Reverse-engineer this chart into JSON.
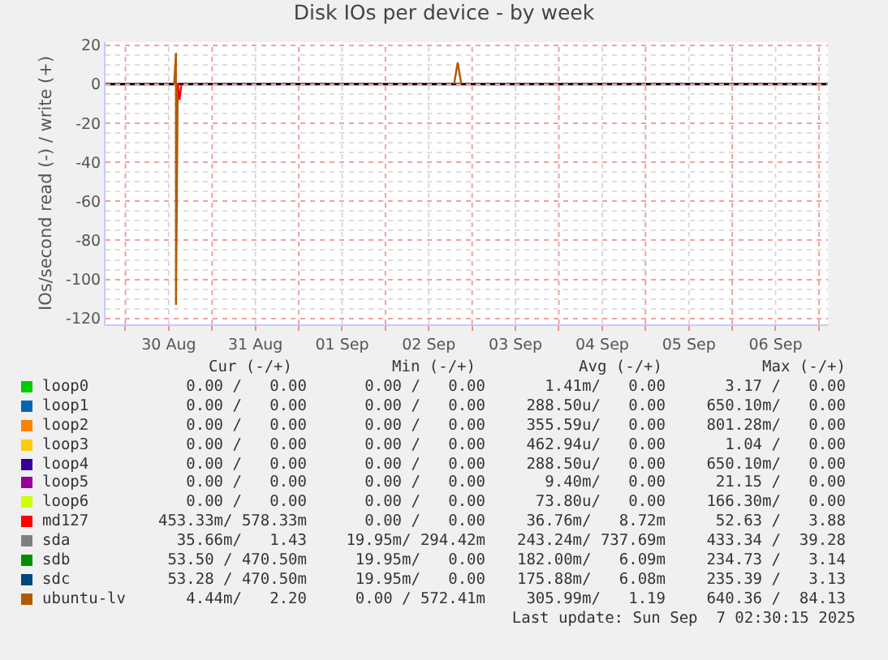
{
  "chart_data": {
    "type": "line",
    "title": "Disk IOs per device - by week",
    "ylabel": "IOs/second read (-) / write (+)",
    "x": [
      "2025-08-30T13:30",
      "2025-08-30T14:00",
      "2025-08-30T14:00",
      "2025-08-30T14:30",
      "2025-08-31T12:00",
      "2025-09-01T04:00",
      "2025-09-01T05:00",
      "2025-09-01T06:00",
      "2025-09-02T12:00",
      "2025-09-02T19:00",
      "2025-09-02T20:00",
      "2025-09-02T21:00"
    ],
    "xlim": [
      "2025-08-29T18:30",
      "2025-09-07T02:30"
    ],
    "xticks": [
      {
        "value": "2025-08-30T00:00",
        "label": null
      },
      {
        "value": "2025-08-30T12:00",
        "label": "30 Aug"
      },
      {
        "value": "2025-08-31T00:00",
        "label": null
      },
      {
        "value": "2025-08-31T12:00",
        "label": "31 Aug"
      },
      {
        "value": "2025-09-01T00:00",
        "label": null
      },
      {
        "value": "2025-09-01T12:00",
        "label": "01 Sep"
      },
      {
        "value": "2025-09-02T00:00",
        "label": null
      },
      {
        "value": "2025-09-02T12:00",
        "label": "02 Sep"
      },
      {
        "value": "2025-09-03T00:00",
        "label": null
      },
      {
        "value": "2025-09-03T12:00",
        "label": "03 Sep"
      },
      {
        "value": "2025-09-04T00:00",
        "label": null
      },
      {
        "value": "2025-09-04T12:00",
        "label": "04 Sep"
      },
      {
        "value": "2025-09-05T00:00",
        "label": null
      },
      {
        "value": "2025-09-05T12:00",
        "label": "05 Sep"
      },
      {
        "value": "2025-09-06T00:00",
        "label": null
      },
      {
        "value": "2025-09-06T12:00",
        "label": "06 Sep"
      },
      {
        "value": "2025-09-07T00:00",
        "label": null
      }
    ],
    "ylim": [
      -123,
      21.5
    ],
    "yticks": [
      -120,
      -100,
      -80,
      -60,
      -40,
      -20,
      0,
      20
    ],
    "grid": true,
    "legend": "bottom",
    "marker": "none",
    "line_style": "solid",
    "ref_lines": [
      {
        "axis": "y",
        "value": 0,
        "color": "#000000"
      }
    ],
    "series": [
      {
        "name": "loop0",
        "color": "#00cc00",
        "values": [
          null,
          null,
          null,
          null,
          null,
          null,
          null,
          null,
          null,
          null,
          null,
          null
        ]
      },
      {
        "name": "loop1",
        "color": "#0066b3",
        "values": [
          null,
          null,
          null,
          null,
          null,
          null,
          null,
          null,
          null,
          null,
          null,
          null
        ]
      },
      {
        "name": "loop2",
        "color": "#ff8000",
        "values": [
          null,
          null,
          null,
          null,
          null,
          null,
          null,
          null,
          null,
          null,
          null,
          null
        ]
      },
      {
        "name": "loop3",
        "color": "#ffcc00",
        "values": [
          null,
          null,
          null,
          null,
          null,
          null,
          null,
          null,
          null,
          null,
          null,
          null
        ]
      },
      {
        "name": "loop4",
        "color": "#330099",
        "values": [
          null,
          null,
          null,
          null,
          null,
          null,
          null,
          null,
          null,
          null,
          null,
          null
        ]
      },
      {
        "name": "loop5",
        "color": "#990099",
        "values": [
          null,
          null,
          null,
          null,
          null,
          null,
          null,
          null,
          null,
          null,
          null,
          null
        ]
      },
      {
        "name": "loop6",
        "color": "#ccff00",
        "values": [
          null,
          null,
          null,
          null,
          null,
          null,
          null,
          null,
          null,
          null,
          null,
          null
        ]
      },
      {
        "name": "md127",
        "color": "#ff0000",
        "values": [
          null,
          null,
          null,
          null,
          null,
          null,
          null,
          null,
          null,
          null,
          null,
          null
        ]
      },
      {
        "name": "sda",
        "color": "#808080",
        "values": [
          null,
          null,
          null,
          null,
          null,
          null,
          null,
          null,
          null,
          null,
          null,
          null
        ]
      },
      {
        "name": "sdb",
        "color": "#008f00",
        "values": [
          null,
          null,
          null,
          null,
          null,
          null,
          null,
          null,
          null,
          null,
          null,
          null
        ]
      },
      {
        "name": "sdc",
        "color": "#00487d",
        "values": [
          null,
          null,
          null,
          null,
          null,
          null,
          null,
          null,
          null,
          null,
          null,
          null
        ]
      },
      {
        "name": "ubuntu-lv",
        "color": "#b35a00",
        "values": [
          0,
          16,
          -113,
          0,
          null,
          null,
          null,
          null,
          null,
          0,
          11,
          0
        ]
      },
      {
        "color": "#ff0000",
        "x": [
          "2025-08-30T14:30",
          "2025-08-30T15:00",
          "2025-08-30T15:30"
        ],
        "values": [
          0,
          -8,
          0
        ]
      }
    ],
    "annotations": [
      "Cur (-/+)",
      "Min (-/+)",
      "Avg (-/+)",
      "Max (-/+)",
      "0.00 /   0.00",
      "0.00 /   0.00",
      "1.41m/   0.00",
      "3.17 /   0.00",
      "0.00 /   0.00",
      "0.00 /   0.00",
      "288.50u/   0.00",
      "650.10m/   0.00",
      "0.00 /   0.00",
      "0.00 /   0.00",
      "355.59u/   0.00",
      "801.28m/   0.00",
      "0.00 /   0.00",
      "0.00 /   0.00",
      "462.94u/   0.00",
      "1.04 /   0.00",
      "0.00 /   0.00",
      "0.00 /   0.00",
      "288.50u/   0.00",
      "650.10m/   0.00",
      "0.00 /   0.00",
      "0.00 /   0.00",
      "9.40m/   0.00",
      "21.15 /   0.00",
      "0.00 /   0.00",
      "0.00 /   0.00",
      "73.80u/   0.00",
      "166.30m/   0.00",
      "453.33m/ 578.33m",
      "0.00 /   0.00",
      "36.76m/   8.72m",
      "52.63 /   3.88",
      "35.66m/   1.43",
      "19.95m/ 294.42m",
      "243.24m/ 737.69m",
      "433.34 /  39.28",
      "53.50 / 470.50m",
      "19.95m/   0.00",
      "182.00m/   6.09m",
      "234.73 /   3.14",
      "53.28 / 470.50m",
      "19.95m/   0.00",
      "175.88m/   6.08m",
      "235.39 /   3.13",
      "4.44m/   2.20",
      "0.00 / 572.41m",
      "305.99m/   1.19",
      "640.36 /  84.13",
      "Last update: Sun Sep  7 02:30:15 2025"
    ]
  }
}
